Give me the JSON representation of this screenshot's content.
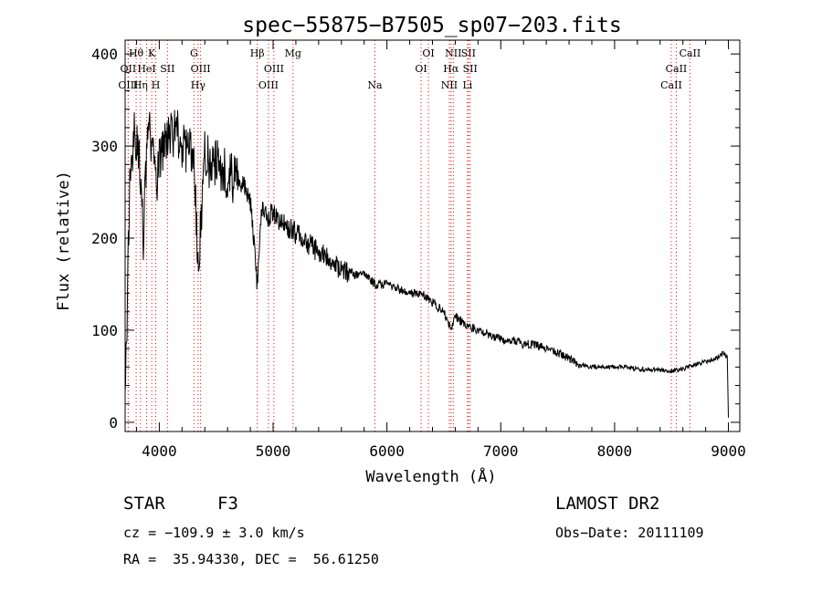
{
  "chart_data": {
    "type": "line",
    "title": "spec−55875−B7505_sp07−203.fits",
    "xlabel": "Wavelength (Å)",
    "ylabel": "Flux (relative)",
    "xlim": [
      3700,
      9100
    ],
    "ylim": [
      -10,
      415
    ],
    "xticks": [
      4000,
      5000,
      6000,
      7000,
      8000,
      9000
    ],
    "yticks": [
      0,
      100,
      200,
      300,
      400
    ],
    "grid": false,
    "series": [
      {
        "x": [
          3700,
          3740,
          3780,
          3820,
          3860,
          3900,
          3935,
          3970,
          4000,
          4050,
          4100,
          4150,
          4200,
          4250,
          4300,
          4340,
          4400,
          4450,
          4500,
          4550,
          4600,
          4650,
          4700,
          4750,
          4800,
          4861,
          4900,
          4950,
          5000,
          5050,
          5100,
          5150,
          5200,
          5300,
          5400,
          5500,
          5600,
          5700,
          5800,
          5900,
          6000,
          6100,
          6200,
          6300,
          6400,
          6500,
          6563,
          6600,
          6700,
          6800,
          6900,
          7000,
          7100,
          7200,
          7300,
          7400,
          7500,
          7600,
          7700,
          7800,
          7900,
          8000,
          8100,
          8200,
          8300,
          8400,
          8500,
          8600,
          8700,
          8800,
          8900,
          8950,
          8990,
          9000
        ],
        "y": [
          20,
          250,
          320,
          300,
          200,
          330,
          300,
          250,
          290,
          300,
          310,
          320,
          300,
          290,
          300,
          160,
          300,
          270,
          280,
          275,
          270,
          265,
          260,
          255,
          240,
          150,
          230,
          220,
          230,
          215,
          215,
          210,
          205,
          195,
          185,
          175,
          165,
          160,
          160,
          150,
          150,
          145,
          140,
          140,
          130,
          120,
          100,
          115,
          105,
          100,
          95,
          90,
          90,
          85,
          85,
          80,
          75,
          70,
          62,
          60,
          60,
          60,
          60,
          58,
          57,
          57,
          56,
          58,
          62,
          66,
          70,
          75,
          70,
          5
        ]
      }
    ],
    "line_markers": [
      {
        "label": "Hθ",
        "wavelength": 3797,
        "row": 0
      },
      {
        "label": "OII",
        "wavelength": 3727,
        "row": 1
      },
      {
        "label": "OIII",
        "wavelength": 3727,
        "row": 2
      },
      {
        "label": "HeI",
        "wavelength": 3889,
        "row": 1
      },
      {
        "label": "Hη",
        "wavelength": 3835,
        "row": 2
      },
      {
        "label": "K",
        "wavelength": 3934,
        "row": 0
      },
      {
        "label": "SII",
        "wavelength": 4072,
        "row": 1
      },
      {
        "label": "H",
        "wavelength": 3969,
        "row": 2
      },
      {
        "label": "G",
        "wavelength": 4305,
        "row": 0
      },
      {
        "label": "OIII",
        "wavelength": 4363,
        "row": 1
      },
      {
        "label": "Hγ",
        "wavelength": 4341,
        "row": 2
      },
      {
        "label": "Hβ",
        "wavelength": 4861,
        "row": 0
      },
      {
        "label": "OIII",
        "wavelength": 5007,
        "row": 1
      },
      {
        "label": "OIII",
        "wavelength": 4959,
        "row": 2
      },
      {
        "label": "Mg",
        "wavelength": 5175,
        "row": 0
      },
      {
        "label": "Na",
        "wavelength": 5894,
        "row": 2
      },
      {
        "label": "OI",
        "wavelength": 6364,
        "row": 0
      },
      {
        "label": "OI",
        "wavelength": 6300,
        "row": 1
      },
      {
        "label": "NII",
        "wavelength": 6583,
        "row": 0
      },
      {
        "label": "SII",
        "wavelength": 6716,
        "row": 0
      },
      {
        "label": "Hα",
        "wavelength": 6563,
        "row": 1
      },
      {
        "label": "SII",
        "wavelength": 6731,
        "row": 1
      },
      {
        "label": "NII",
        "wavelength": 6548,
        "row": 2
      },
      {
        "label": "Li",
        "wavelength": 6708,
        "row": 2
      },
      {
        "label": "CaII",
        "wavelength": 8662,
        "row": 0
      },
      {
        "label": "CaII",
        "wavelength": 8542,
        "row": 1
      },
      {
        "label": "CaII",
        "wavelength": 8498,
        "row": 2
      }
    ]
  },
  "info": {
    "class_label": "STAR",
    "subclass": "F3",
    "survey": "LAMOST DR2",
    "cz": "cz = −109.9 ± 3.0 km/s",
    "obs_date": "Obs−Date: 20111109",
    "coords": "RA =  35.94330, DEC =  56.61250"
  },
  "colors": {
    "spectrum": "#000000",
    "marker_line": "#ff0000",
    "axes": "#000000",
    "background": "#ffffff"
  }
}
